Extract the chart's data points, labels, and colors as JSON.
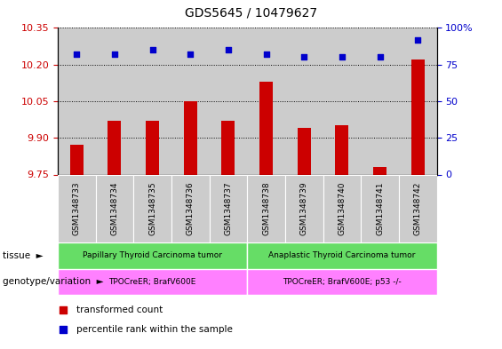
{
  "title": "GDS5645 / 10479627",
  "samples": [
    "GSM1348733",
    "GSM1348734",
    "GSM1348735",
    "GSM1348736",
    "GSM1348737",
    "GSM1348738",
    "GSM1348739",
    "GSM1348740",
    "GSM1348741",
    "GSM1348742"
  ],
  "transformed_counts": [
    9.87,
    9.97,
    9.97,
    10.05,
    9.97,
    10.13,
    9.94,
    9.95,
    9.78,
    10.22
  ],
  "percentile_ranks": [
    82,
    82,
    85,
    82,
    85,
    82,
    80,
    80,
    80,
    92
  ],
  "ylim_left": [
    9.75,
    10.35
  ],
  "ylim_right": [
    0,
    100
  ],
  "yticks_left": [
    9.75,
    9.9,
    10.05,
    10.2,
    10.35
  ],
  "yticks_right": [
    0,
    25,
    50,
    75,
    100
  ],
  "bar_color": "#cc0000",
  "dot_color": "#0000cc",
  "tissue_groups": [
    {
      "label": "Papillary Thyroid Carcinoma tumor",
      "start": 0,
      "end": 5,
      "color": "#66dd66"
    },
    {
      "label": "Anaplastic Thyroid Carcinoma tumor",
      "start": 5,
      "end": 10,
      "color": "#66dd66"
    }
  ],
  "genotype_groups": [
    {
      "label": "TPOCreER; BrafV600E",
      "start": 0,
      "end": 5,
      "color": "#ff80ff"
    },
    {
      "label": "TPOCreER; BrafV600E; p53 -/-",
      "start": 5,
      "end": 10,
      "color": "#ff80ff"
    }
  ],
  "tissue_label": "tissue",
  "genotype_label": "genotype/variation",
  "legend_items": [
    {
      "label": "transformed count",
      "color": "#cc0000"
    },
    {
      "label": "percentile rank within the sample",
      "color": "#0000cc"
    }
  ],
  "sample_bg_color": "#cccccc",
  "plot_bg": "#ffffff"
}
